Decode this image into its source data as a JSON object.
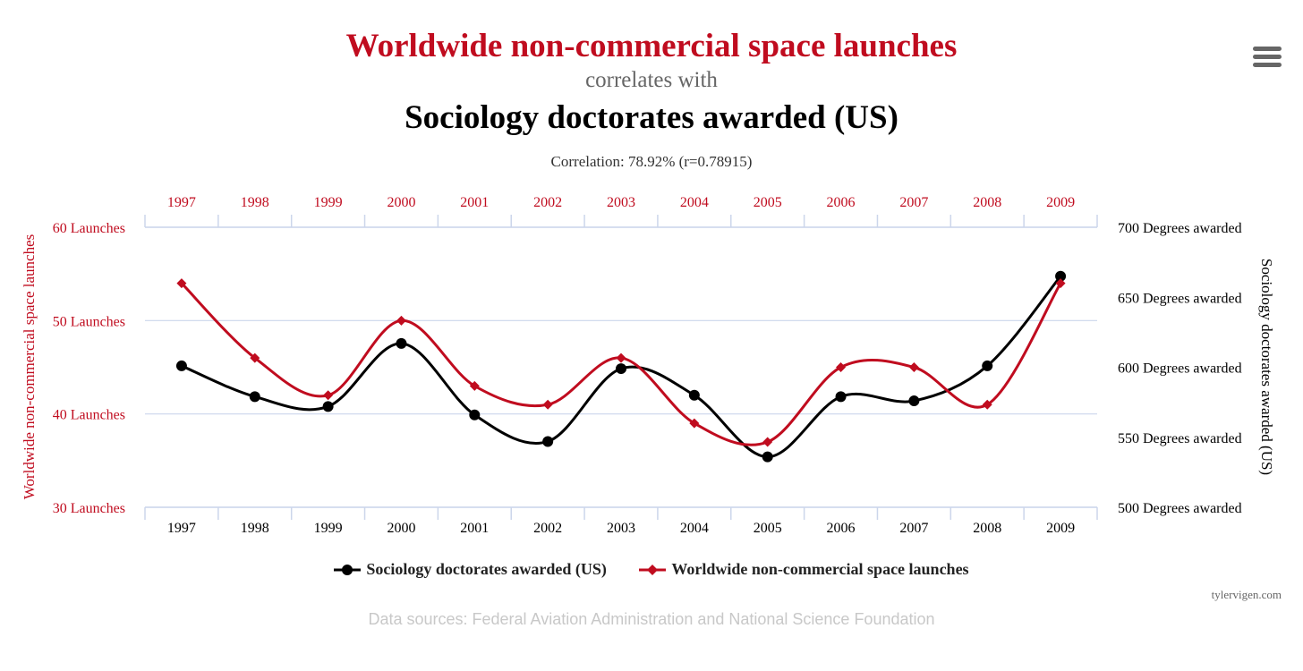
{
  "title": {
    "series_a": "Worldwide non-commercial space launches",
    "connector": "correlates with",
    "series_b": "Sociology doctorates awarded (US)"
  },
  "correlation": "Correlation: 78.92% (r=0.78915)",
  "menu_icon": "hamburger-menu-icon",
  "credit": "tylervigen.com",
  "sources": "Data sources: Federal Aviation Administration and National Science Foundation",
  "colors": {
    "red": "#c00c1f",
    "black": "#000000",
    "grid": "#ccd6eb"
  },
  "chart_data": {
    "type": "line",
    "categories": [
      "1997",
      "1998",
      "1999",
      "2000",
      "2001",
      "2002",
      "2003",
      "2004",
      "2005",
      "2006",
      "2007",
      "2008",
      "2009"
    ],
    "series": [
      {
        "name": "Sociology doctorates awarded (US)",
        "axis": "right",
        "marker": "circle",
        "color": "#000000",
        "values": [
          601,
          579,
          572,
          617,
          566,
          547,
          599,
          580,
          536,
          579,
          576,
          601,
          665
        ]
      },
      {
        "name": "Worldwide non-commercial space launches",
        "axis": "left",
        "marker": "diamond",
        "color": "#c00c1f",
        "values": [
          54,
          46,
          42,
          50,
          43,
          41,
          46,
          39,
          37,
          45,
          45,
          41,
          54
        ]
      }
    ],
    "left_axis": {
      "label": "Worldwide non-commercial space launches",
      "ylim": [
        30,
        60
      ],
      "ticks": [
        {
          "value": 30,
          "label": "30 Launches"
        },
        {
          "value": 40,
          "label": "40 Launches"
        },
        {
          "value": 50,
          "label": "50 Launches"
        },
        {
          "value": 60,
          "label": "60 Launches"
        }
      ]
    },
    "right_axis": {
      "label": "Sociology doctorates awarded (US)",
      "ylim": [
        500,
        700
      ],
      "ticks": [
        {
          "value": 500,
          "label": "500 Degrees awarded"
        },
        {
          "value": 550,
          "label": "550 Degrees awarded"
        },
        {
          "value": 600,
          "label": "600 Degrees awarded"
        },
        {
          "value": 650,
          "label": "650 Degrees awarded"
        },
        {
          "value": 700,
          "label": "700 Degrees awarded"
        }
      ]
    },
    "legend_position": "bottom-center"
  }
}
